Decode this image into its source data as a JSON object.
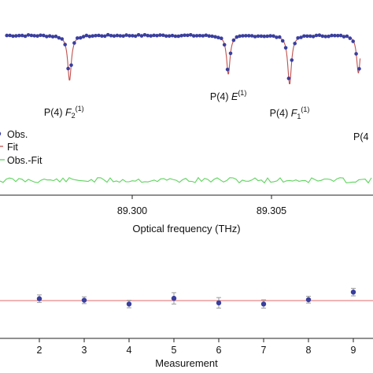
{
  "chart_data": [
    {
      "type": "line",
      "panel": "spectrum",
      "xlabel": "Optical frequency (THz)",
      "x_ticks": [
        "89.300",
        "89.305"
      ],
      "xlim": [
        89.2955,
        89.3082
      ],
      "legend_position": "left",
      "legend": [
        {
          "label": "Obs.",
          "marker": "dot",
          "color": "#3a3f9e"
        },
        {
          "label": "Fit",
          "marker": "line",
          "color": "#c0504d"
        },
        {
          "label": "Obs.-Fit",
          "marker": "line",
          "color": "#5fd35f"
        }
      ],
      "annotations": [
        {
          "text": "P(4) ",
          "italic": "F",
          "sub": "2",
          "sup": "(1)",
          "x": 89.29755
        },
        {
          "text": "P(4) ",
          "italic": "E",
          "sub": "",
          "sup": "(1)",
          "x": 89.30345
        },
        {
          "text": "P(4) ",
          "italic": "F",
          "sub": "1",
          "sup": "(1)",
          "x": 89.30565
        },
        {
          "text": "P(4",
          "italic": "",
          "sub": "",
          "sup": "",
          "x": 89.3081
        }
      ],
      "baseline": 1.0,
      "lines": [
        {
          "center": 89.29775,
          "width": 0.00016,
          "depth": 0.72
        },
        {
          "center": 89.30345,
          "width": 0.00015,
          "depth": 0.62
        },
        {
          "center": 89.30565,
          "width": 0.00016,
          "depth": 0.78
        },
        {
          "center": 89.30812,
          "width": 0.00015,
          "depth": 0.6
        }
      ]
    },
    {
      "type": "scatter",
      "panel": "repeatability",
      "xlabel": "Measurement",
      "x_ticks": [
        "2",
        "3",
        "4",
        "5",
        "6",
        "7",
        "8",
        "9"
      ],
      "xlim": [
        0.8,
        9.4
      ],
      "ylim": [
        -1.2,
        1.2
      ],
      "reference_line": 0,
      "x": [
        2,
        3,
        4,
        5,
        6,
        7,
        8,
        9
      ],
      "y": [
        0.1,
        0.02,
        -0.18,
        0.12,
        -0.12,
        -0.18,
        0.05,
        0.45
      ],
      "error": [
        0.2,
        0.18,
        0.2,
        0.3,
        0.28,
        0.22,
        0.18,
        0.2
      ]
    }
  ],
  "colors": {
    "obs": "#3a3f9e",
    "fit": "#c0504d",
    "residual": "#5fd35f",
    "errorbar": "#9a9a9a",
    "refline": "#e06a6a"
  }
}
